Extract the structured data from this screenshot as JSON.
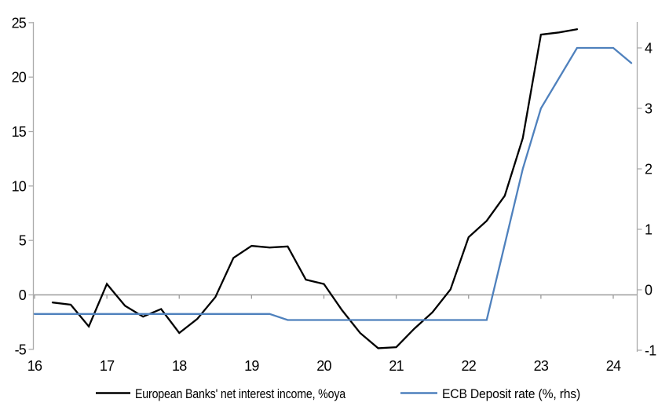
{
  "chart_data": {
    "type": "line",
    "title": "",
    "x_axis": {
      "ticks": [
        16,
        17,
        18,
        19,
        20,
        21,
        22,
        23,
        24
      ],
      "min": 16,
      "max": 24.25
    },
    "left_axis": {
      "ticks": [
        -5,
        0,
        5,
        10,
        15,
        20,
        25
      ],
      "min": -5,
      "max": 25
    },
    "right_axis": {
      "ticks": [
        -1,
        0,
        1,
        2,
        3,
        4
      ],
      "min": -1,
      "max": 4.45
    },
    "grid": "zero-line-only",
    "legend_position": "bottom",
    "series": [
      {
        "name": "European Banks' net interest income, %oya",
        "axis": "left",
        "color": "#000000",
        "x": [
          16.25,
          16.5,
          16.75,
          17.0,
          17.25,
          17.5,
          17.75,
          18.0,
          18.25,
          18.5,
          18.75,
          19.0,
          19.25,
          19.5,
          19.75,
          20.0,
          20.25,
          20.5,
          20.75,
          21.0,
          21.25,
          21.5,
          21.75,
          22.0,
          22.25,
          22.5,
          22.75,
          23.0,
          23.25,
          23.5
        ],
        "values": [
          -0.7,
          -0.9,
          -2.9,
          1.0,
          -1.0,
          -2.0,
          -1.3,
          -3.5,
          -2.2,
          -0.2,
          3.4,
          4.5,
          4.35,
          4.45,
          1.4,
          1.0,
          -1.4,
          -3.5,
          -4.9,
          -4.8,
          -3.1,
          -1.6,
          0.5,
          5.3,
          6.8,
          9.1,
          14.4,
          23.9,
          24.1,
          24.4
        ]
      },
      {
        "name": "ECB Deposit rate (%, rhs)",
        "axis": "right",
        "color": "#4F81BD",
        "x": [
          16.0,
          16.25,
          16.5,
          16.75,
          17.0,
          17.25,
          17.5,
          17.75,
          18.0,
          18.25,
          18.5,
          18.75,
          19.0,
          19.25,
          19.5,
          19.75,
          20.0,
          20.25,
          20.5,
          20.75,
          21.0,
          21.25,
          21.5,
          21.75,
          22.0,
          22.25,
          22.5,
          22.75,
          23.0,
          23.25,
          23.5,
          23.75,
          24.0,
          24.25
        ],
        "values": [
          -0.4,
          -0.4,
          -0.4,
          -0.4,
          -0.4,
          -0.4,
          -0.4,
          -0.4,
          -0.4,
          -0.4,
          -0.4,
          -0.4,
          -0.4,
          -0.4,
          -0.5,
          -0.5,
          -0.5,
          -0.5,
          -0.5,
          -0.5,
          -0.5,
          -0.5,
          -0.5,
          -0.5,
          -0.5,
          -0.5,
          0.75,
          2.0,
          3.0,
          3.5,
          4.0,
          4.0,
          4.0,
          3.75
        ]
      }
    ]
  },
  "colors": {
    "axis_line": "#ABABAB",
    "zero_line": "#9C9C9C",
    "label_text": "#000000"
  }
}
